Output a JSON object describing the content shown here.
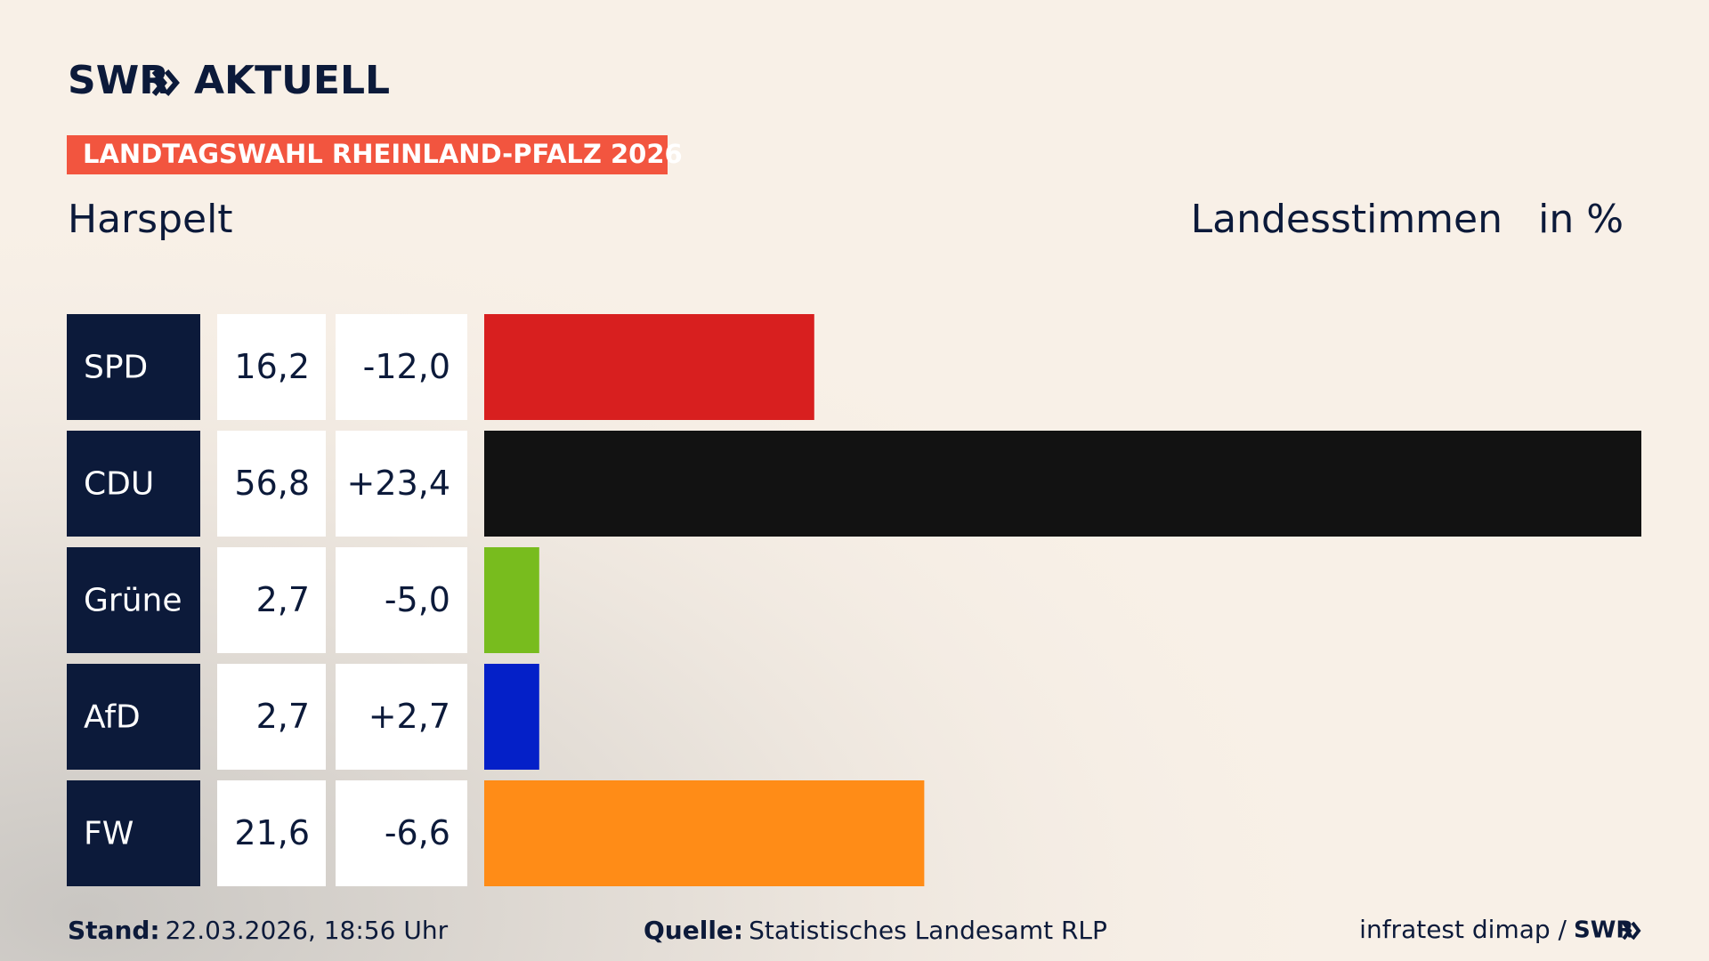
{
  "chart_data": {
    "type": "bar",
    "brand": "SWR",
    "brand_suffix": "AKTUELL",
    "title": "LANDTAGSWAHL RHEINLAND-PFALZ 2026",
    "subtitle": "Harspelt",
    "measure": "Landesstimmen",
    "unit": "in %",
    "categories": [
      "SPD",
      "CDU",
      "Grüne",
      "AfD",
      "FW"
    ],
    "values": [
      16.2,
      56.8,
      2.7,
      2.7,
      21.6
    ],
    "value_labels": [
      "16,2",
      "56,8",
      "2,7",
      "2,7",
      "21,6"
    ],
    "changes": [
      -12.0,
      23.4,
      -5.0,
      2.7,
      -6.6
    ],
    "change_labels": [
      "-12,0",
      "+23,4",
      "-5,0",
      "+2,7",
      "-6,6"
    ],
    "colors": [
      "#d81f1f",
      "#121212",
      "#78bc1e",
      "#0420c8",
      "#ff8c17"
    ],
    "xlim": [
      0,
      56.8
    ],
    "footer": {
      "date_label": "Stand:",
      "date": "22.03.2026, 18:56 Uhr",
      "source_label": "Quelle:",
      "source": "Statistisches Landesamt RLP",
      "credit": "infratest dimap /",
      "credit_brand": "SWR"
    }
  }
}
